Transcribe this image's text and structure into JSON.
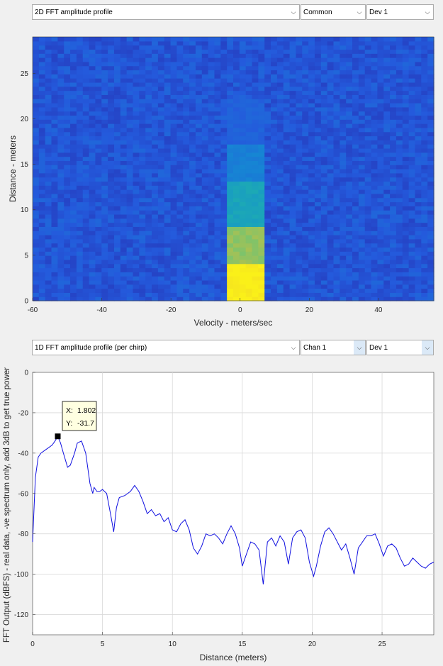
{
  "top_panel": {
    "view_select": "2D FFT amplitude profile",
    "mode_select": "Common",
    "device_select": "Dev 1"
  },
  "bottom_panel": {
    "view_select": "1D FFT amplitude profile (per chirp)",
    "channel_select": "Chan 1",
    "device_select": "Dev 1"
  },
  "colors": {
    "line": "#1010e0",
    "heatmap_low": "#2c3ec9",
    "heatmap_high": "#f5e21a",
    "grid": "#d9d9d9"
  },
  "chart_data": [
    {
      "type": "heatmap",
      "title": "",
      "xlabel": "Velocity - meters/sec",
      "ylabel": "Distance - meters",
      "xlim": [
        -60,
        56
      ],
      "ylim": [
        0,
        29
      ],
      "xticks": [
        -60,
        -40,
        -20,
        0,
        20,
        40
      ],
      "yticks": [
        0,
        5,
        10,
        15,
        20,
        25
      ],
      "hot_column": {
        "velocity_range": [
          -4,
          7
        ],
        "intensity_by_distance": [
          [
            0,
            4,
            1.0
          ],
          [
            4,
            8,
            0.78
          ],
          [
            8,
            13,
            0.55
          ],
          [
            13,
            17,
            0.4
          ],
          [
            17,
            22,
            0.28
          ]
        ]
      }
    },
    {
      "type": "line",
      "title": "",
      "xlabel": "Distance (meters)",
      "ylabel": "FFT Output (dBFS) - real data, -ve spectrum only, add 3dB to get true power",
      "xlim": [
        0,
        28.7
      ],
      "ylim": [
        -130,
        0
      ],
      "xticks": [
        0,
        5,
        10,
        15,
        20,
        25
      ],
      "yticks": [
        0,
        -20,
        -40,
        -60,
        -80,
        -100,
        -120
      ],
      "grid": true,
      "x": [
        0,
        0.2,
        0.4,
        0.6,
        1.0,
        1.4,
        1.6,
        1.802,
        2.0,
        2.2,
        2.5,
        2.7,
        3.0,
        3.2,
        3.5,
        3.8,
        4.1,
        4.3,
        4.4,
        4.6,
        4.8,
        5.0,
        5.3,
        5.6,
        5.8,
        6.0,
        6.2,
        6.6,
        7.0,
        7.3,
        7.6,
        7.9,
        8.2,
        8.5,
        8.8,
        9.1,
        9.4,
        9.7,
        10.0,
        10.3,
        10.6,
        10.9,
        11.2,
        11.5,
        11.8,
        12.1,
        12.4,
        12.7,
        13.0,
        13.3,
        13.6,
        13.9,
        14.2,
        14.5,
        14.8,
        15.0,
        15.3,
        15.6,
        15.9,
        16.2,
        16.5,
        16.8,
        17.1,
        17.4,
        17.7,
        18.0,
        18.3,
        18.6,
        18.9,
        19.2,
        19.5,
        19.8,
        20.1,
        20.3,
        20.6,
        20.9,
        21.2,
        21.5,
        21.8,
        22.1,
        22.4,
        22.7,
        23.0,
        23.3,
        23.6,
        23.9,
        24.2,
        24.5,
        24.8,
        25.1,
        25.4,
        25.7,
        26.0,
        26.3,
        26.6,
        26.9,
        27.2,
        27.5,
        27.8,
        28.1,
        28.4,
        28.7
      ],
      "y": [
        -84,
        -52,
        -42,
        -40,
        -38,
        -36,
        -34,
        -31.7,
        -35,
        -40,
        -47,
        -46,
        -40,
        -35,
        -34,
        -40,
        -55,
        -60,
        -57,
        -59,
        -59,
        -58,
        -60,
        -71,
        -79,
        -67,
        -62,
        -61,
        -59,
        -56,
        -59,
        -64,
        -70,
        -68,
        -71,
        -70,
        -74,
        -72,
        -78,
        -79,
        -75,
        -73,
        -78,
        -87,
        -90,
        -86,
        -80,
        -81,
        -80,
        -82,
        -85,
        -80,
        -76,
        -80,
        -87,
        -96,
        -90,
        -84,
        -85,
        -88,
        -105,
        -84,
        -82,
        -86,
        -81,
        -84,
        -95,
        -82,
        -79,
        -78,
        -82,
        -94,
        -101,
        -96,
        -86,
        -79,
        -77,
        -80,
        -84,
        -88,
        -85,
        -92,
        -100,
        -87,
        -84,
        -81,
        -81,
        -80,
        -85,
        -91,
        -86,
        -85,
        -87,
        -92,
        -96,
        -95,
        -92,
        -94,
        -96,
        -97,
        -95,
        -94
      ]
    }
  ],
  "cursor_tip": {
    "x_label": "X:",
    "x_value": "1.802",
    "y_label": "Y:",
    "y_value": "-31.7"
  }
}
